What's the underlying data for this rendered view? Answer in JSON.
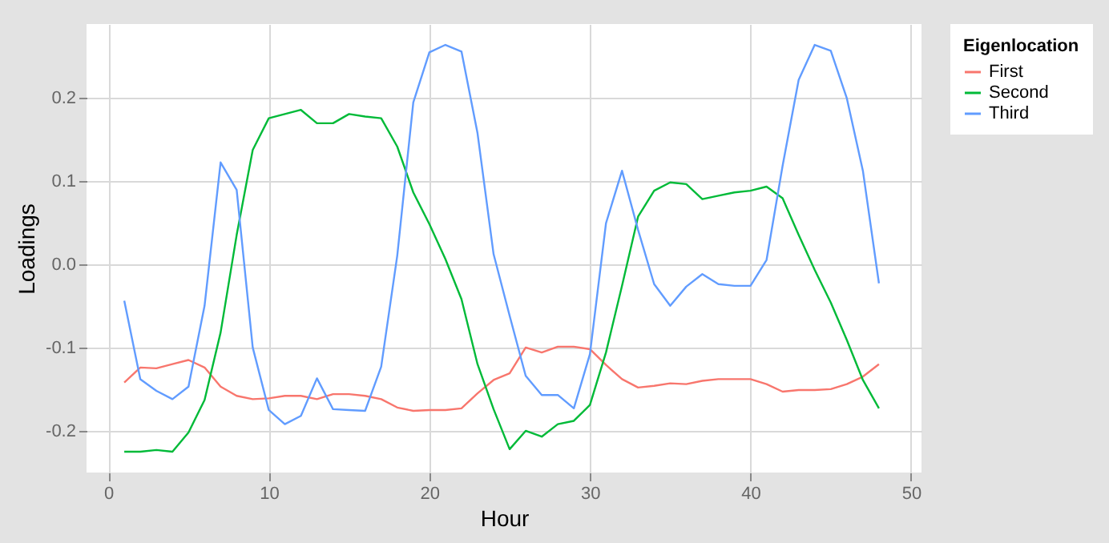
{
  "chart_data": {
    "type": "line",
    "xlabel": "Hour",
    "ylabel": "Loadings",
    "legend_title": "Eigenlocation",
    "x": [
      1,
      2,
      3,
      4,
      5,
      6,
      7,
      8,
      9,
      10,
      11,
      12,
      13,
      14,
      15,
      16,
      17,
      18,
      19,
      20,
      21,
      22,
      23,
      24,
      25,
      26,
      27,
      28,
      29,
      30,
      31,
      32,
      33,
      34,
      35,
      36,
      37,
      38,
      39,
      40,
      41,
      42,
      43,
      44,
      45,
      46,
      47,
      48
    ],
    "series": [
      {
        "name": "First",
        "color": "#f8766d",
        "values": [
          -0.142,
          -0.124,
          -0.125,
          -0.12,
          -0.115,
          -0.124,
          -0.147,
          -0.158,
          -0.162,
          -0.161,
          -0.158,
          -0.158,
          -0.162,
          -0.156,
          -0.156,
          -0.158,
          -0.162,
          -0.172,
          -0.176,
          -0.175,
          -0.175,
          -0.173,
          -0.155,
          -0.139,
          -0.131,
          -0.1,
          -0.106,
          -0.099,
          -0.099,
          -0.102,
          -0.121,
          -0.138,
          -0.148,
          -0.146,
          -0.143,
          -0.144,
          -0.14,
          -0.138,
          -0.138,
          -0.138,
          -0.144,
          -0.153,
          -0.151,
          -0.151,
          -0.15,
          -0.144,
          -0.135,
          -0.12
        ]
      },
      {
        "name": "Second",
        "color": "#00ba38",
        "values": [
          -0.225,
          -0.225,
          -0.223,
          -0.225,
          -0.202,
          -0.163,
          -0.082,
          0.035,
          0.137,
          0.175,
          0.18,
          0.185,
          0.169,
          0.169,
          0.18,
          0.177,
          0.175,
          0.141,
          0.086,
          0.048,
          0.006,
          -0.042,
          -0.12,
          -0.174,
          -0.222,
          -0.2,
          -0.207,
          -0.192,
          -0.188,
          -0.169,
          -0.106,
          -0.026,
          0.057,
          0.088,
          0.098,
          0.096,
          0.078,
          0.082,
          0.086,
          0.088,
          0.093,
          0.079,
          0.035,
          -0.007,
          -0.046,
          -0.091,
          -0.139,
          -0.173
        ]
      },
      {
        "name": "Third",
        "color": "#619cff",
        "values": [
          -0.044,
          -0.138,
          -0.152,
          -0.162,
          -0.147,
          -0.05,
          0.122,
          0.089,
          -0.1,
          -0.175,
          -0.192,
          -0.182,
          -0.137,
          -0.174,
          -0.175,
          -0.176,
          -0.123,
          0.01,
          0.194,
          0.254,
          0.263,
          0.255,
          0.157,
          0.012,
          -0.062,
          -0.134,
          -0.157,
          -0.157,
          -0.173,
          -0.108,
          0.049,
          0.112,
          0.041,
          -0.024,
          -0.05,
          -0.027,
          -0.012,
          -0.024,
          -0.026,
          -0.026,
          0.005,
          0.118,
          0.221,
          0.263,
          0.256,
          0.199,
          0.112,
          -0.023
        ]
      }
    ],
    "xlim": [
      -1.35,
      50.65
    ],
    "ylim": [
      -0.25,
      0.288
    ],
    "xticks": [
      0,
      10,
      20,
      30,
      40,
      50
    ],
    "yticks": [
      -0.2,
      -0.1,
      {
        "value": 0,
        "label": "0.0"
      },
      0.1,
      0.2
    ],
    "grid": true,
    "legend": "right"
  }
}
